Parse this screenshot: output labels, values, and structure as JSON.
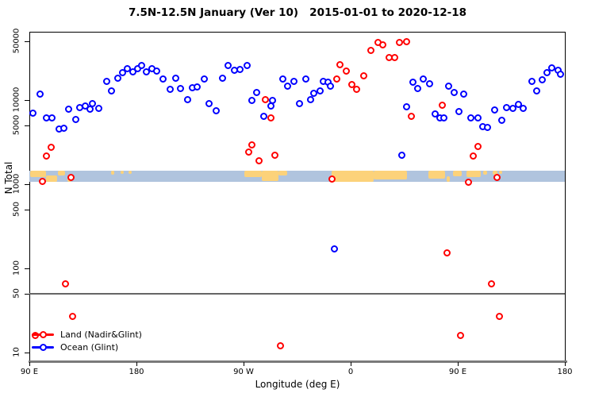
{
  "title": "7.5N-12.5N January (Ver 10)   2015-01-01 to 2020-12-18",
  "chart_data": {
    "type": "scatter",
    "title": "7.5N-12.5N January (Ver 10)   2015-01-01 to 2020-12-18",
    "xlabel": "Longitude (deg E)",
    "ylabel": "N Total",
    "y_scale": "log10",
    "y_range": [
      8,
      65000
    ],
    "y_ticks": [
      50000,
      10000,
      5000,
      1000,
      500,
      100,
      50,
      10
    ],
    "x_axis_degrees_range": [
      90,
      540
    ],
    "x_ticks": [
      {
        "deg": 90,
        "label": "90 E"
      },
      {
        "deg": 180,
        "label": "180"
      },
      {
        "deg": 270,
        "label": "90 W"
      },
      {
        "deg": 360,
        "label": "0"
      },
      {
        "deg": 450,
        "label": "90 E"
      },
      {
        "deg": 540,
        "label": "180"
      }
    ],
    "reference_line_n": 50,
    "legend_position": "bottom-left",
    "grid": false,
    "map_band": {
      "n_low": 1070,
      "n_high": 1450,
      "ocean_color": "#B0C4DE",
      "land_color": "#FCD27A",
      "land_segments": [
        {
          "from": 90.5,
          "to": 104,
          "anchor": "top",
          "cover": 0.6
        },
        {
          "from": 104,
          "to": 113,
          "anchor": "bottom",
          "cover": 0.55
        },
        {
          "from": 114,
          "to": 120,
          "anchor": "top",
          "cover": 0.45
        },
        {
          "from": 122,
          "to": 125,
          "anchor": "bottom",
          "cover": 0.4
        },
        {
          "from": 158.5,
          "to": 161.5,
          "anchor": "top",
          "cover": 0.35
        },
        {
          "from": 166.5,
          "to": 169.5,
          "anchor": "top",
          "cover": 0.3
        },
        {
          "from": 173,
          "to": 176,
          "anchor": "top",
          "cover": 0.3
        },
        {
          "from": 270.5,
          "to": 285,
          "anchor": "top",
          "cover": 0.6
        },
        {
          "from": 285,
          "to": 299,
          "anchor": "top",
          "cover": 0.95
        },
        {
          "from": 299,
          "to": 306.5,
          "anchor": "top",
          "cover": 0.45
        },
        {
          "from": 344,
          "to": 379,
          "anchor": "top",
          "cover": 1.0
        },
        {
          "from": 379,
          "to": 407,
          "anchor": "top",
          "cover": 0.8
        },
        {
          "from": 425,
          "to": 439,
          "anchor": "top",
          "cover": 0.7
        },
        {
          "from": 440.5,
          "to": 443.5,
          "anchor": "bottom",
          "cover": 0.5
        },
        {
          "from": 446,
          "to": 453,
          "anchor": "top",
          "cover": 0.5
        },
        {
          "from": 457,
          "to": 469,
          "anchor": "top",
          "cover": 0.6
        },
        {
          "from": 471.5,
          "to": 474.5,
          "anchor": "top",
          "cover": 0.4
        },
        {
          "from": 479,
          "to": 483,
          "anchor": "top",
          "cover": 0.35
        },
        {
          "from": 484.5,
          "to": 487,
          "anchor": "top",
          "cover": 0.3
        }
      ]
    },
    "series": [
      {
        "name": "Ocean (Glint)",
        "color": "#0000FF",
        "points": [
          [
            98.7,
            11700
          ],
          [
            93.3,
            7060
          ],
          [
            104,
            6070
          ],
          [
            109.3,
            6200
          ],
          [
            114.7,
            4570
          ],
          [
            118.7,
            4670
          ],
          [
            122.7,
            7710
          ],
          [
            129.3,
            5930
          ],
          [
            132,
            8080
          ],
          [
            137.3,
            8440
          ],
          [
            140.7,
            7710
          ],
          [
            143.3,
            8990
          ],
          [
            148,
            7890
          ],
          [
            154.7,
            16500
          ],
          [
            158.7,
            12800
          ],
          [
            164,
            18300
          ],
          [
            168,
            21100
          ],
          [
            172,
            23400
          ],
          [
            177.3,
            21500
          ],
          [
            180.7,
            23400
          ],
          [
            184,
            25600
          ],
          [
            188,
            21500
          ],
          [
            192.7,
            23400
          ],
          [
            197.3,
            22000
          ],
          [
            202,
            17800
          ],
          [
            208,
            13400
          ],
          [
            213.3,
            18300
          ],
          [
            217.3,
            13700
          ],
          [
            223.3,
            10100
          ],
          [
            226.7,
            14000
          ],
          [
            230.7,
            14300
          ],
          [
            237.3,
            17800
          ],
          [
            241.3,
            8990
          ],
          [
            247.3,
            7380
          ],
          [
            252,
            18200
          ],
          [
            257.3,
            25600
          ],
          [
            262,
            22500
          ],
          [
            267.3,
            23000
          ],
          [
            273.3,
            25600
          ],
          [
            277.3,
            9800
          ],
          [
            281.3,
            12300
          ],
          [
            286.7,
            6350
          ],
          [
            292.7,
            8440
          ],
          [
            294,
            9800
          ],
          [
            302.7,
            17800
          ],
          [
            307.3,
            14700
          ],
          [
            312,
            16500
          ],
          [
            316.7,
            8990
          ],
          [
            322,
            17800
          ],
          [
            326,
            10100
          ],
          [
            329.3,
            12100
          ],
          [
            334,
            12900
          ],
          [
            337.3,
            16500
          ],
          [
            341.3,
            16200
          ],
          [
            343.3,
            14700
          ],
          [
            346,
            172
          ],
          [
            403.3,
            2190
          ],
          [
            407.3,
            8260
          ],
          [
            412,
            16200
          ],
          [
            416,
            13700
          ],
          [
            421.3,
            17800
          ],
          [
            426,
            15500
          ],
          [
            430.7,
            6900
          ],
          [
            434.7,
            6200
          ],
          [
            438,
            6070
          ],
          [
            442,
            14700
          ],
          [
            447.3,
            12300
          ],
          [
            455.3,
            11800
          ],
          [
            451.3,
            7220
          ],
          [
            461.3,
            6200
          ],
          [
            467.3,
            6070
          ],
          [
            470.7,
            4870
          ],
          [
            475.3,
            4770
          ],
          [
            480.7,
            7550
          ],
          [
            487.3,
            5800
          ],
          [
            491.3,
            8080
          ],
          [
            496,
            7900
          ],
          [
            500.7,
            8780
          ],
          [
            505.3,
            7900
          ],
          [
            512,
            16500
          ],
          [
            516,
            12900
          ],
          [
            520.7,
            17400
          ],
          [
            524.7,
            21100
          ],
          [
            529.3,
            24000
          ],
          [
            534,
            22500
          ],
          [
            536,
            20200
          ]
        ]
      },
      {
        "name": "Land (Nadir&Glint)",
        "color": "#FF0000",
        "points": [
          [
            108,
            2720
          ],
          [
            104,
            2150
          ],
          [
            100.7,
            1070
          ],
          [
            125.3,
            1215
          ],
          [
            274,
            2390
          ],
          [
            277.3,
            2900
          ],
          [
            282.7,
            1880
          ],
          [
            296,
            2190
          ],
          [
            288,
            10100
          ],
          [
            292.7,
            6070
          ],
          [
            344,
            1140
          ],
          [
            348,
            17800
          ],
          [
            350.7,
            26200
          ],
          [
            356,
            22000
          ],
          [
            360.7,
            15200
          ],
          [
            365.3,
            13400
          ],
          [
            370.7,
            19200
          ],
          [
            376.7,
            38800
          ],
          [
            382.7,
            48100
          ],
          [
            387.3,
            45100
          ],
          [
            392,
            31700
          ],
          [
            396.7,
            31700
          ],
          [
            401.3,
            48100
          ],
          [
            406.7,
            49200
          ],
          [
            410.7,
            6350
          ],
          [
            437.3,
            8620
          ],
          [
            440.7,
            152
          ],
          [
            458.7,
            1050
          ],
          [
            463.3,
            2150
          ],
          [
            466.7,
            2780
          ],
          [
            478,
            66
          ],
          [
            482.7,
            1190
          ],
          [
            484.7,
            27
          ],
          [
            452,
            16
          ],
          [
            120,
            65
          ],
          [
            126,
            27
          ],
          [
            300.7,
            12
          ],
          [
            94.7,
            16
          ]
        ]
      }
    ]
  },
  "legend": {
    "land_label": "Land (Nadir&Glint)",
    "ocean_label": "Ocean (Glint)",
    "land_color": "#FF0000",
    "ocean_color": "#0000FF"
  }
}
